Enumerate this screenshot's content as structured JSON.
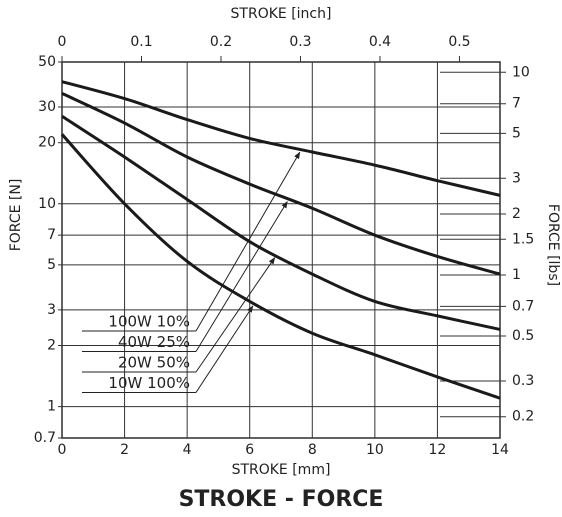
{
  "chart_data": {
    "type": "line",
    "title": "STROKE - FORCE",
    "xlabel": "STROKE [mm]",
    "x2label": "STROKE [inch]",
    "ylabel": "FORCE [N]",
    "y2label": "FORCE [lbs]",
    "x": [
      0,
      2,
      4,
      6,
      8,
      10,
      12,
      14
    ],
    "xlim": [
      0,
      14
    ],
    "xticks": [
      0,
      2,
      4,
      6,
      8,
      10,
      12,
      14
    ],
    "x2lim": [
      0,
      0.551
    ],
    "x2ticks": [
      0,
      0.1,
      0.2,
      0.3,
      0.4,
      0.5
    ],
    "ylim": [
      0.7,
      50
    ],
    "yticks": [
      0.7,
      1,
      2,
      3,
      5,
      7,
      10,
      20,
      30,
      50
    ],
    "y2lim": [
      0.157,
      11.24
    ],
    "y2ticks": [
      0.2,
      0.3,
      0.5,
      0.7,
      1,
      1.5,
      2,
      3,
      5,
      7,
      10
    ],
    "log_y": true,
    "grid": true,
    "series": [
      {
        "name": "100W  10%",
        "color": "#1a1a1a",
        "values": [
          40,
          33,
          26,
          21,
          18,
          15.5,
          13,
          11
        ]
      },
      {
        "name": "40W  25%",
        "color": "#1a1a1a",
        "values": [
          35,
          25,
          17,
          12.5,
          9.5,
          7,
          5.5,
          4.5
        ]
      },
      {
        "name": "20W  50%",
        "color": "#1a1a1a",
        "values": [
          27,
          17,
          10.5,
          6.5,
          4.5,
          3.3,
          2.8,
          2.4
        ]
      },
      {
        "name": "10W 100%",
        "color": "#1a1a1a",
        "values": [
          22,
          10,
          5.2,
          3.3,
          2.3,
          1.8,
          1.4,
          1.1
        ]
      }
    ]
  }
}
